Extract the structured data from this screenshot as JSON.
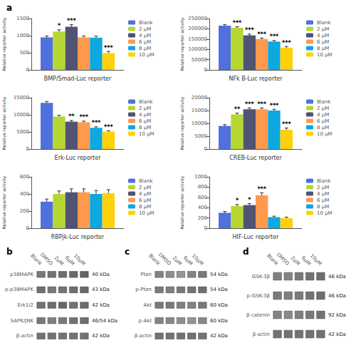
{
  "chart_data": [
    {
      "type": "bar",
      "xlabel": "BMP/Smad-Luc reporter",
      "ylabel": "Relative reporter activity",
      "annotations": [
        "a"
      ],
      "categories": [
        null
      ],
      "series": [
        {
          "name": "Blank",
          "values": [
            950
          ],
          "errors": [
            40
          ]
        },
        {
          "name": "2 μM",
          "values": [
            1120
          ],
          "errors": [
            50
          ],
          "annotations": [
            "*"
          ]
        },
        {
          "name": "4 μM",
          "values": [
            1260
          ],
          "errors": [
            60
          ],
          "annotations": [
            "***"
          ]
        },
        {
          "name": "6 μM",
          "values": [
            950
          ],
          "errors": [
            40
          ]
        },
        {
          "name": "8 μM",
          "values": [
            940
          ],
          "errors": [
            45
          ]
        },
        {
          "name": "10 μM",
          "values": [
            490
          ],
          "errors": [
            50
          ],
          "annotations": [
            "***"
          ]
        }
      ],
      "ylim": [
        0,
        1500
      ],
      "yticks": [
        0,
        500,
        1000,
        1500
      ],
      "grid": false,
      "legend": "upper right",
      "tick_labels": "y"
    },
    {
      "type": "bar",
      "xlabel": "NFk B-Luc reporter",
      "ylabel": "Relative reporter activity",
      "categories": [
        null
      ],
      "series": [
        {
          "name": "Blank",
          "values": [
            215000
          ],
          "errors": [
            5000
          ]
        },
        {
          "name": "2 μM",
          "values": [
            205000
          ],
          "errors": [
            5000
          ],
          "annotations": [
            "***"
          ]
        },
        {
          "name": "4 μM",
          "values": [
            168000
          ],
          "errors": [
            6000
          ],
          "annotations": [
            "***"
          ]
        },
        {
          "name": "6 μM",
          "values": [
            150000
          ],
          "errors": [
            5000
          ],
          "annotations": [
            "***"
          ]
        },
        {
          "name": "8 μM",
          "values": [
            138000
          ],
          "errors": [
            5000
          ],
          "annotations": [
            "***"
          ]
        },
        {
          "name": "10 μM",
          "values": [
            108000
          ],
          "errors": [
            6000
          ],
          "annotations": [
            "***"
          ]
        }
      ],
      "ylim": [
        0,
        250000
      ],
      "yticks": [
        0,
        50000,
        100000,
        150000,
        200000,
        250000
      ],
      "grid": false,
      "legend": "upper right",
      "tick_labels": "y"
    },
    {
      "type": "bar",
      "xlabel": "Erk-Luc reporter",
      "ylabel": "Relative reporter activity",
      "categories": [
        null
      ],
      "series": [
        {
          "name": "Blank",
          "values": [
            13500
          ],
          "errors": [
            400
          ]
        },
        {
          "name": "2 μM",
          "values": [
            9500
          ],
          "errors": [
            350
          ]
        },
        {
          "name": "4 μM",
          "values": [
            8000
          ],
          "errors": [
            350
          ],
          "annotations": [
            "**"
          ]
        },
        {
          "name": "6 μM",
          "values": [
            7800
          ],
          "errors": [
            350
          ],
          "annotations": [
            "***"
          ]
        },
        {
          "name": "8 μM",
          "values": [
            6200
          ],
          "errors": [
            300
          ],
          "annotations": [
            "***"
          ]
        },
        {
          "name": "10 μM",
          "values": [
            5100
          ],
          "errors": [
            250
          ],
          "annotations": [
            "***"
          ]
        }
      ],
      "ylim": [
        0,
        15000
      ],
      "yticks": [
        0,
        5000,
        10000,
        15000
      ],
      "grid": false,
      "legend": "upper right",
      "tick_labels": "y"
    },
    {
      "type": "bar",
      "xlabel": "CREB-Luc reporter",
      "ylabel": "Relative reporter activity",
      "categories": [
        null
      ],
      "series": [
        {
          "name": "Blank",
          "values": [
            9000
          ],
          "errors": [
            500
          ]
        },
        {
          "name": "2 μM",
          "values": [
            13500
          ],
          "errors": [
            500
          ],
          "annotations": [
            "**"
          ]
        },
        {
          "name": "4 μM",
          "values": [
            15500
          ],
          "errors": [
            500
          ],
          "annotations": [
            "***"
          ]
        },
        {
          "name": "6 μM",
          "values": [
            15500
          ],
          "errors": [
            500
          ],
          "annotations": [
            "***"
          ]
        },
        {
          "name": "8 μM",
          "values": [
            15000
          ],
          "errors": [
            500
          ],
          "annotations": [
            "***"
          ]
        },
        {
          "name": "10 μM",
          "values": [
            7500
          ],
          "errors": [
            700
          ],
          "annotations": [
            "***"
          ]
        }
      ],
      "ylim": [
        0,
        20000
      ],
      "yticks": [
        0,
        5000,
        10000,
        15000,
        20000
      ],
      "grid": false,
      "legend": "upper right",
      "tick_labels": "y"
    },
    {
      "type": "bar",
      "xlabel": "RBPjk-Luc reporter",
      "ylabel": "Relative reporter activity",
      "categories": [
        null
      ],
      "series": [
        {
          "name": "Blank",
          "values": [
            310
          ],
          "errors": [
            30
          ]
        },
        {
          "name": "2 μM",
          "values": [
            400
          ],
          "errors": [
            35
          ]
        },
        {
          "name": "4 μM",
          "values": [
            420
          ],
          "errors": [
            40
          ]
        },
        {
          "name": "6 μM",
          "values": [
            420
          ],
          "errors": [
            40
          ]
        },
        {
          "name": "8 μM",
          "values": [
            400
          ],
          "errors": [
            40
          ]
        },
        {
          "name": "10 μM",
          "values": [
            410
          ],
          "errors": [
            40
          ]
        }
      ],
      "ylim": [
        0,
        600
      ],
      "yticks": [
        0,
        200,
        400,
        600
      ],
      "grid": false,
      "legend": "upper right",
      "tick_labels": "y"
    },
    {
      "type": "bar",
      "xlabel": "HIF-Luc reporter",
      "ylabel": "Relative reporter activity",
      "categories": [
        null
      ],
      "series": [
        {
          "name": "Blank",
          "values": [
            300
          ],
          "errors": [
            25
          ]
        },
        {
          "name": "2 μM",
          "values": [
            430
          ],
          "errors": [
            30
          ],
          "annotations": [
            "*"
          ]
        },
        {
          "name": "4 μM",
          "values": [
            450
          ],
          "errors": [
            30
          ],
          "annotations": [
            "*"
          ]
        },
        {
          "name": "6 μM",
          "values": [
            640
          ],
          "errors": [
            50
          ],
          "annotations": [
            "***"
          ]
        },
        {
          "name": "8 μM",
          "values": [
            215
          ],
          "errors": [
            20
          ]
        },
        {
          "name": "10 μM",
          "values": [
            195
          ],
          "errors": [
            20
          ]
        }
      ],
      "ylim": [
        0,
        1000
      ],
      "yticks": [
        0,
        200,
        400,
        600,
        800,
        1000
      ],
      "grid": false,
      "legend": "upper right",
      "tick_labels": "y"
    },
    {
      "type": "heatmap",
      "title": "b",
      "x": [
        "Blank",
        "DMSO",
        "2μM",
        "6μM",
        "10μM"
      ],
      "y": [
        "p38MAPK",
        "p-p38MAPK",
        "Erk1/2",
        "SAPK/JNK",
        "β-actin"
      ],
      "y2": [
        "40 kDa",
        "43 kDa",
        "42 kDa",
        "46/54 kDa",
        "42 kDa"
      ],
      "values": [
        [
          0.55,
          0.52,
          0.5,
          0.48,
          0.46
        ],
        [
          0.5,
          0.55,
          0.53,
          0.5,
          0.48
        ],
        [
          0.52,
          0.5,
          0.48,
          0.52,
          0.5
        ],
        [
          0.55,
          0.58,
          0.55,
          0.52,
          0.5
        ],
        [
          0.52,
          0.52,
          0.52,
          0.52,
          0.52
        ]
      ]
    },
    {
      "type": "heatmap",
      "title": "c",
      "x": [
        "Blank",
        "DMSO",
        "2μM",
        "6μM",
        "10μM"
      ],
      "y": [
        "Pten",
        "p-Pten",
        "Akt",
        "p-Akt",
        "β-actin"
      ],
      "y2": [
        "54 kDa",
        "54 kDa",
        "60 kDa",
        "60 kDa",
        "42 kDa"
      ],
      "values": [
        [
          0.6,
          0.65,
          0.68,
          0.6,
          0.55
        ],
        [
          0.55,
          0.58,
          0.55,
          0.52,
          0.5
        ],
        [
          0.55,
          0.55,
          0.58,
          0.6,
          0.55
        ],
        [
          0.6,
          0.62,
          0.65,
          0.68,
          0.62
        ],
        [
          0.52,
          0.52,
          0.52,
          0.52,
          0.52
        ]
      ]
    },
    {
      "type": "heatmap",
      "title": "d",
      "x": [
        "Blank",
        "DMSO",
        "2μM",
        "6μM",
        "10μM"
      ],
      "y": [
        "GSK-3β",
        "p-GSK-3β",
        "β-catenin",
        "β-actin"
      ],
      "y2": [
        "46 kDa",
        "46 kDa",
        "92 kDa",
        "42 kDa"
      ],
      "values": [
        [
          0.58,
          0.6,
          0.55,
          0.52,
          0.5
        ],
        [
          0.55,
          0.58,
          0.55,
          0.52,
          0.5
        ],
        [
          0.6,
          0.62,
          0.58,
          0.55,
          0.52
        ],
        [
          0.52,
          0.52,
          0.52,
          0.52,
          0.52
        ]
      ]
    }
  ]
}
